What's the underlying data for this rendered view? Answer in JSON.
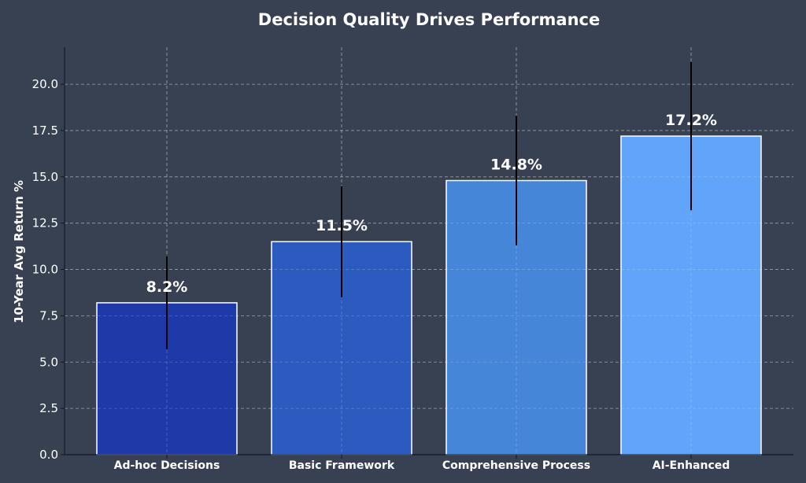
{
  "chart_data": {
    "type": "bar",
    "title": "Decision Quality Drives Performance",
    "xlabel": "",
    "ylabel": "10-Year Avg Return %",
    "categories": [
      "Ad-hoc Decisions",
      "Basic Framework",
      "Comprehensive Process",
      "AI-Enhanced"
    ],
    "values": [
      8.2,
      11.5,
      14.8,
      17.2
    ],
    "errors": [
      2.5,
      3.0,
      3.5,
      4.0
    ],
    "value_labels": [
      "8.2%",
      "11.5%",
      "14.8%",
      "17.2%"
    ],
    "colors": [
      "#1e3a8a",
      "#1d4ed8",
      "#3b82f6",
      "#60a5fa"
    ],
    "bar_colors_rendered": [
      "#1e3aa8",
      "#2b5bbf",
      "#4586d9",
      "#60a5fa"
    ],
    "ylim": [
      0,
      22
    ],
    "yticks": [
      0.0,
      2.5,
      5.0,
      7.5,
      10.0,
      12.5,
      15.0,
      17.5,
      20.0
    ],
    "ytick_labels": [
      "0.0",
      "2.5",
      "5.0",
      "7.5",
      "10.0",
      "12.5",
      "15.0",
      "17.5",
      "20.0"
    ],
    "grid": true,
    "legend": "none",
    "background": "#374151",
    "bar_edge_color": "#ffffff",
    "error_color": "#000000"
  }
}
